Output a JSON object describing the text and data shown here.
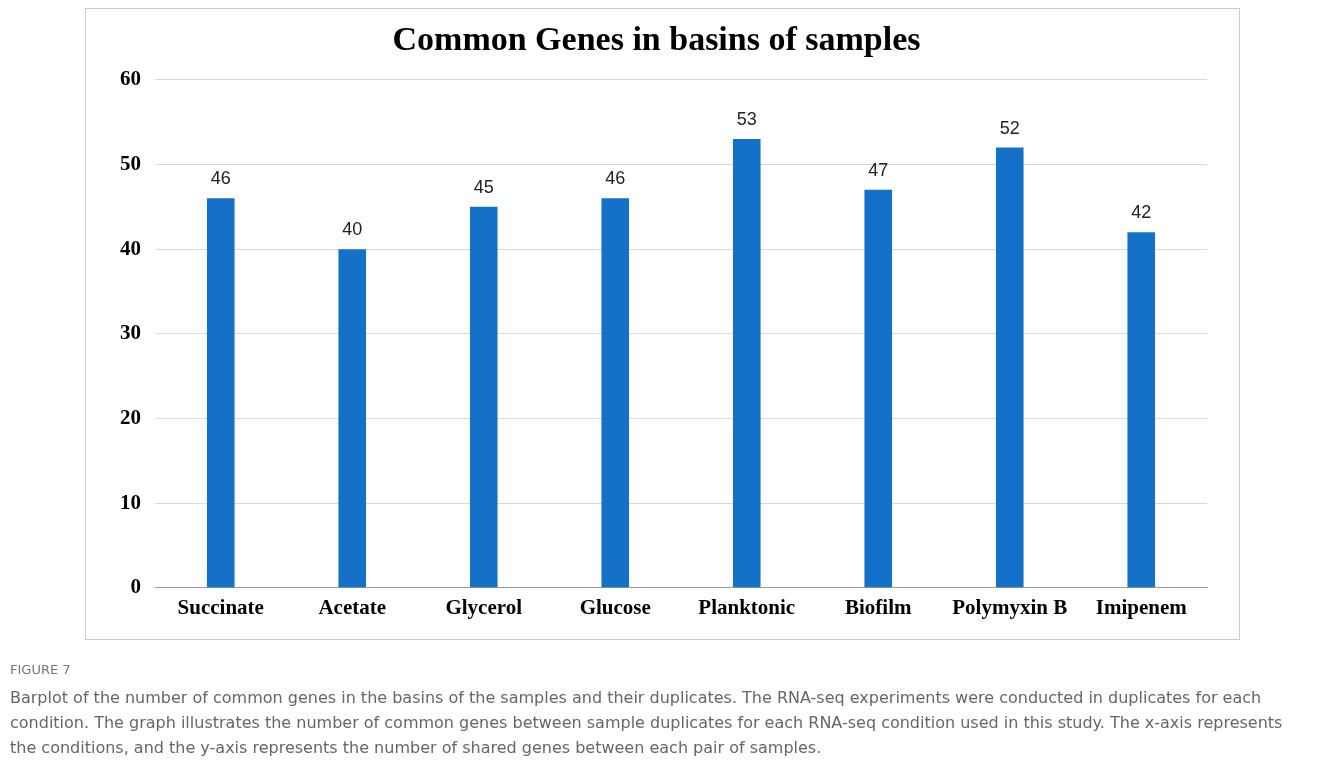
{
  "chart_data": {
    "type": "bar",
    "title": "Common Genes in basins of samples",
    "categories": [
      "Succinate",
      "Acetate",
      "Glycerol",
      "Glucose",
      "Planktonic",
      "Biofilm",
      "Polymyxin B",
      "Imipenem"
    ],
    "values": [
      46,
      40,
      45,
      46,
      53,
      47,
      52,
      42
    ],
    "color": "#1570c8",
    "ylim": [
      0,
      60
    ],
    "yticks": [
      0,
      10,
      20,
      30,
      40,
      50,
      60
    ],
    "grid": "y",
    "data_labels": true,
    "annotations": [
      "FIGURE 7",
      "Barplot of the number of common genes in the basins of the samples and their duplicates. The RNA-seq experiments were conducted in duplicates for each condition. The graph illustrates the number of common genes between sample duplicates for each RNA-seq condition used in this study. The x-axis represents the conditions, and the y-axis represents the number of shared genes between each pair of samples."
    ]
  }
}
